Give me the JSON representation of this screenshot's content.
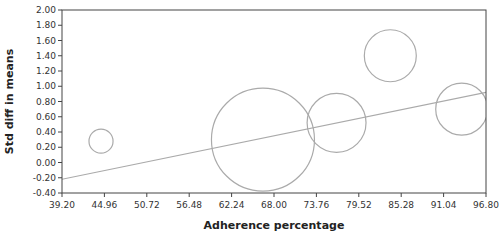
{
  "chart_data": {
    "type": "bubble",
    "xlabel": "Adherence percentage",
    "ylabel": "Std diff in means",
    "xlim": [
      39.2,
      96.8
    ],
    "ylim": [
      -0.4,
      2.0
    ],
    "xticks": [
      {
        "value": 39.2,
        "label": "39.20"
      },
      44.96,
      50.72,
      56.48,
      62.24,
      {
        "value": 68,
        "label": "68.00"
      },
      73.76,
      79.52,
      85.28,
      91.04,
      {
        "value": 96.8,
        "label": "96.80"
      }
    ],
    "yticks": [
      {
        "value": -0.4,
        "label": "-0.40"
      },
      {
        "value": -0.2,
        "label": "-0.20"
      },
      {
        "value": 0,
        "label": "0.00"
      },
      {
        "value": 0.2,
        "label": "0.20"
      },
      {
        "value": 0.4,
        "label": "0.40"
      },
      {
        "value": 0.6,
        "label": "0.60"
      },
      {
        "value": 0.8,
        "label": "0.80"
      },
      {
        "value": 1,
        "label": "1.00"
      },
      {
        "value": 1.2,
        "label": "1.20"
      },
      {
        "value": 1.4,
        "label": "1.40"
      },
      {
        "value": 1.6,
        "label": "1.60"
      },
      {
        "value": 1.8,
        "label": "1.80"
      },
      {
        "value": 2,
        "label": "2.00"
      }
    ],
    "grid": false,
    "series": [
      {
        "type": "bubble",
        "marker": "hollow",
        "color": "#aaaaaa",
        "x": [
          44.5,
          66.5,
          76.5,
          83.8,
          93.5
        ],
        "values": [
          0.28,
          0.3,
          0.52,
          1.4,
          0.7
        ],
        "sizes": [
          300,
          5500,
          1800,
          1400,
          1400
        ]
      },
      {
        "type": "line",
        "color": "#aaaaaa",
        "x": [
          39.2,
          96.8
        ],
        "values": [
          -0.22,
          0.92
        ]
      }
    ]
  }
}
